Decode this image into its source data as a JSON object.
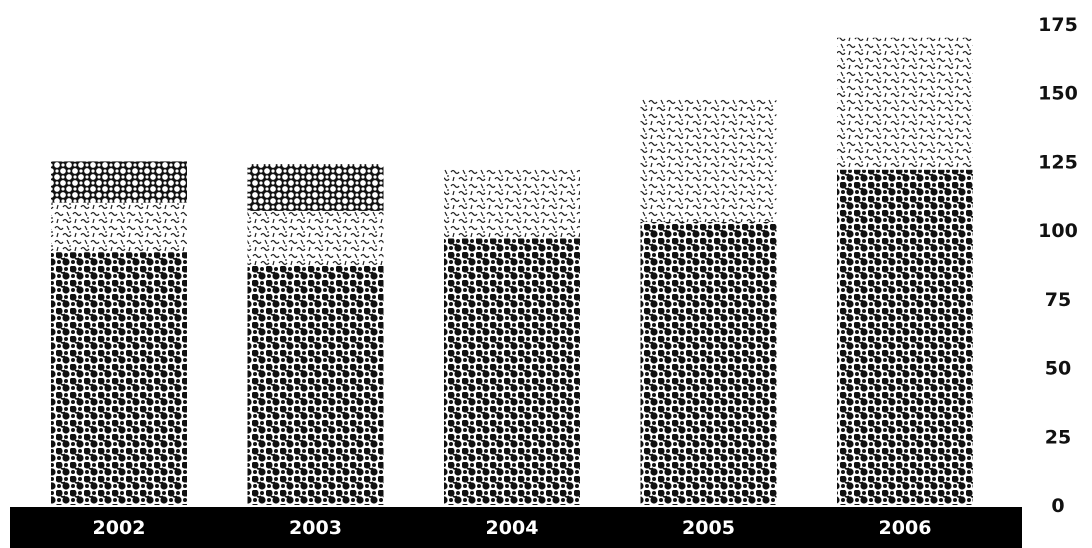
{
  "chart_data": {
    "type": "bar",
    "stacked": true,
    "categories": [
      "2002",
      "2003",
      "2004",
      "2005",
      "2006"
    ],
    "series": [
      {
        "values": [
          92,
          87,
          97,
          103,
          122
        ],
        "pattern": "dense-dot"
      },
      {
        "values": [
          18,
          20,
          25,
          45,
          48
        ],
        "pattern": "light-scribble"
      },
      {
        "values": [
          15,
          17,
          0,
          0,
          0
        ],
        "pattern": "circle-lattice"
      }
    ],
    "ylim": [
      0,
      175
    ],
    "yticks": [
      "0",
      "25",
      "50",
      "75",
      "100",
      "125",
      "150",
      "175"
    ],
    "y_axis_side": "right",
    "grid": false,
    "legend": "none",
    "colors": {
      "ink": "#111111",
      "axis_band": "#000000",
      "background": "#ffffff",
      "tick_text": "#111111",
      "category_text": "#ffffff"
    }
  }
}
